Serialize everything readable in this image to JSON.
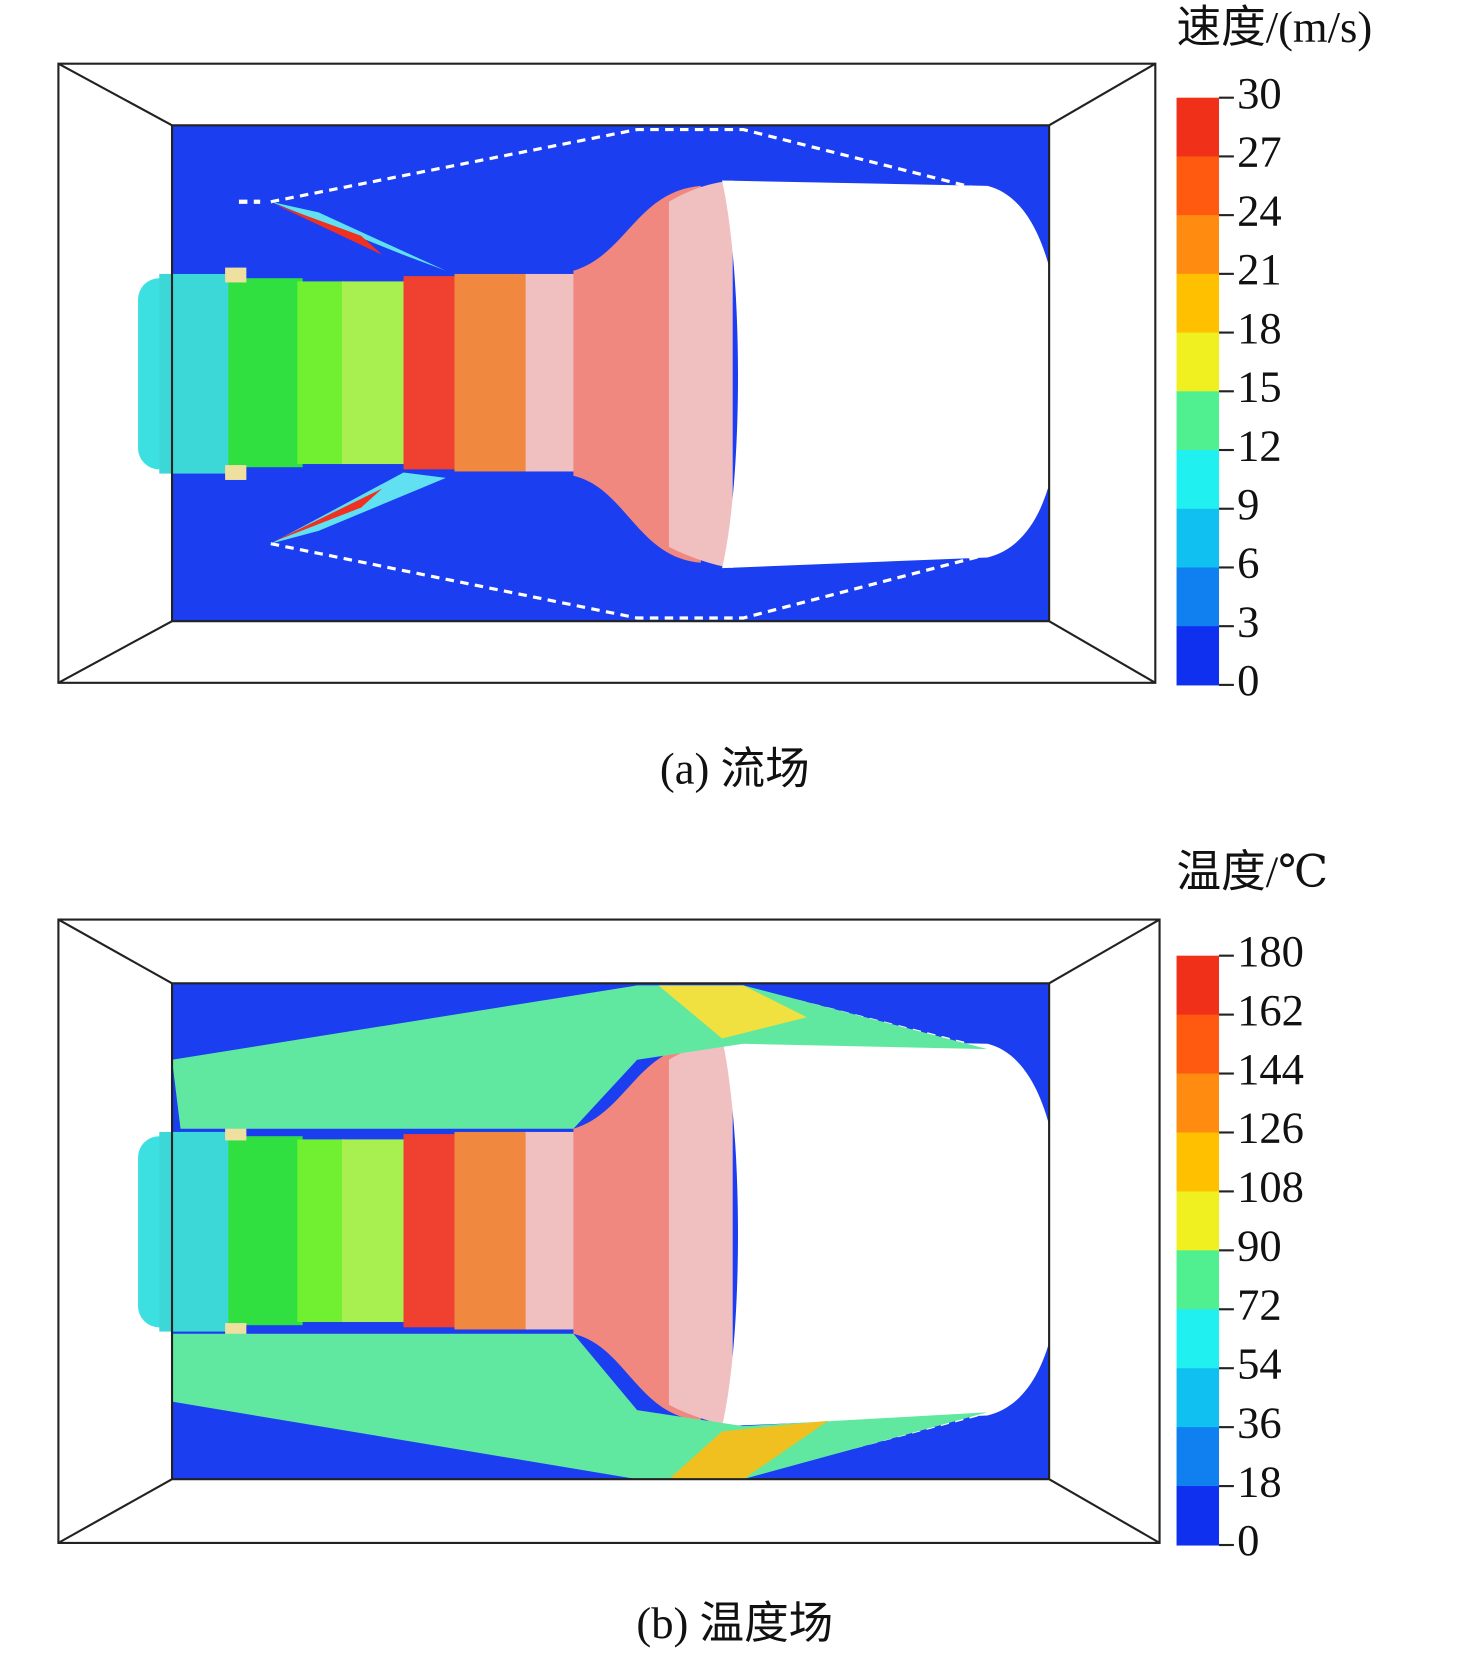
{
  "panels": [
    {
      "colorbar": {
        "title": "速度/(m/s)",
        "ticks": [
          30,
          27,
          24,
          21,
          18,
          15,
          12,
          9,
          6,
          3,
          0
        ]
      },
      "caption": "(a) 流场"
    },
    {
      "colorbar": {
        "title": "温度/℃",
        "ticks": [
          180,
          162,
          144,
          126,
          108,
          90,
          72,
          54,
          36,
          18,
          0
        ]
      },
      "caption": "(b) 温度场"
    }
  ]
}
